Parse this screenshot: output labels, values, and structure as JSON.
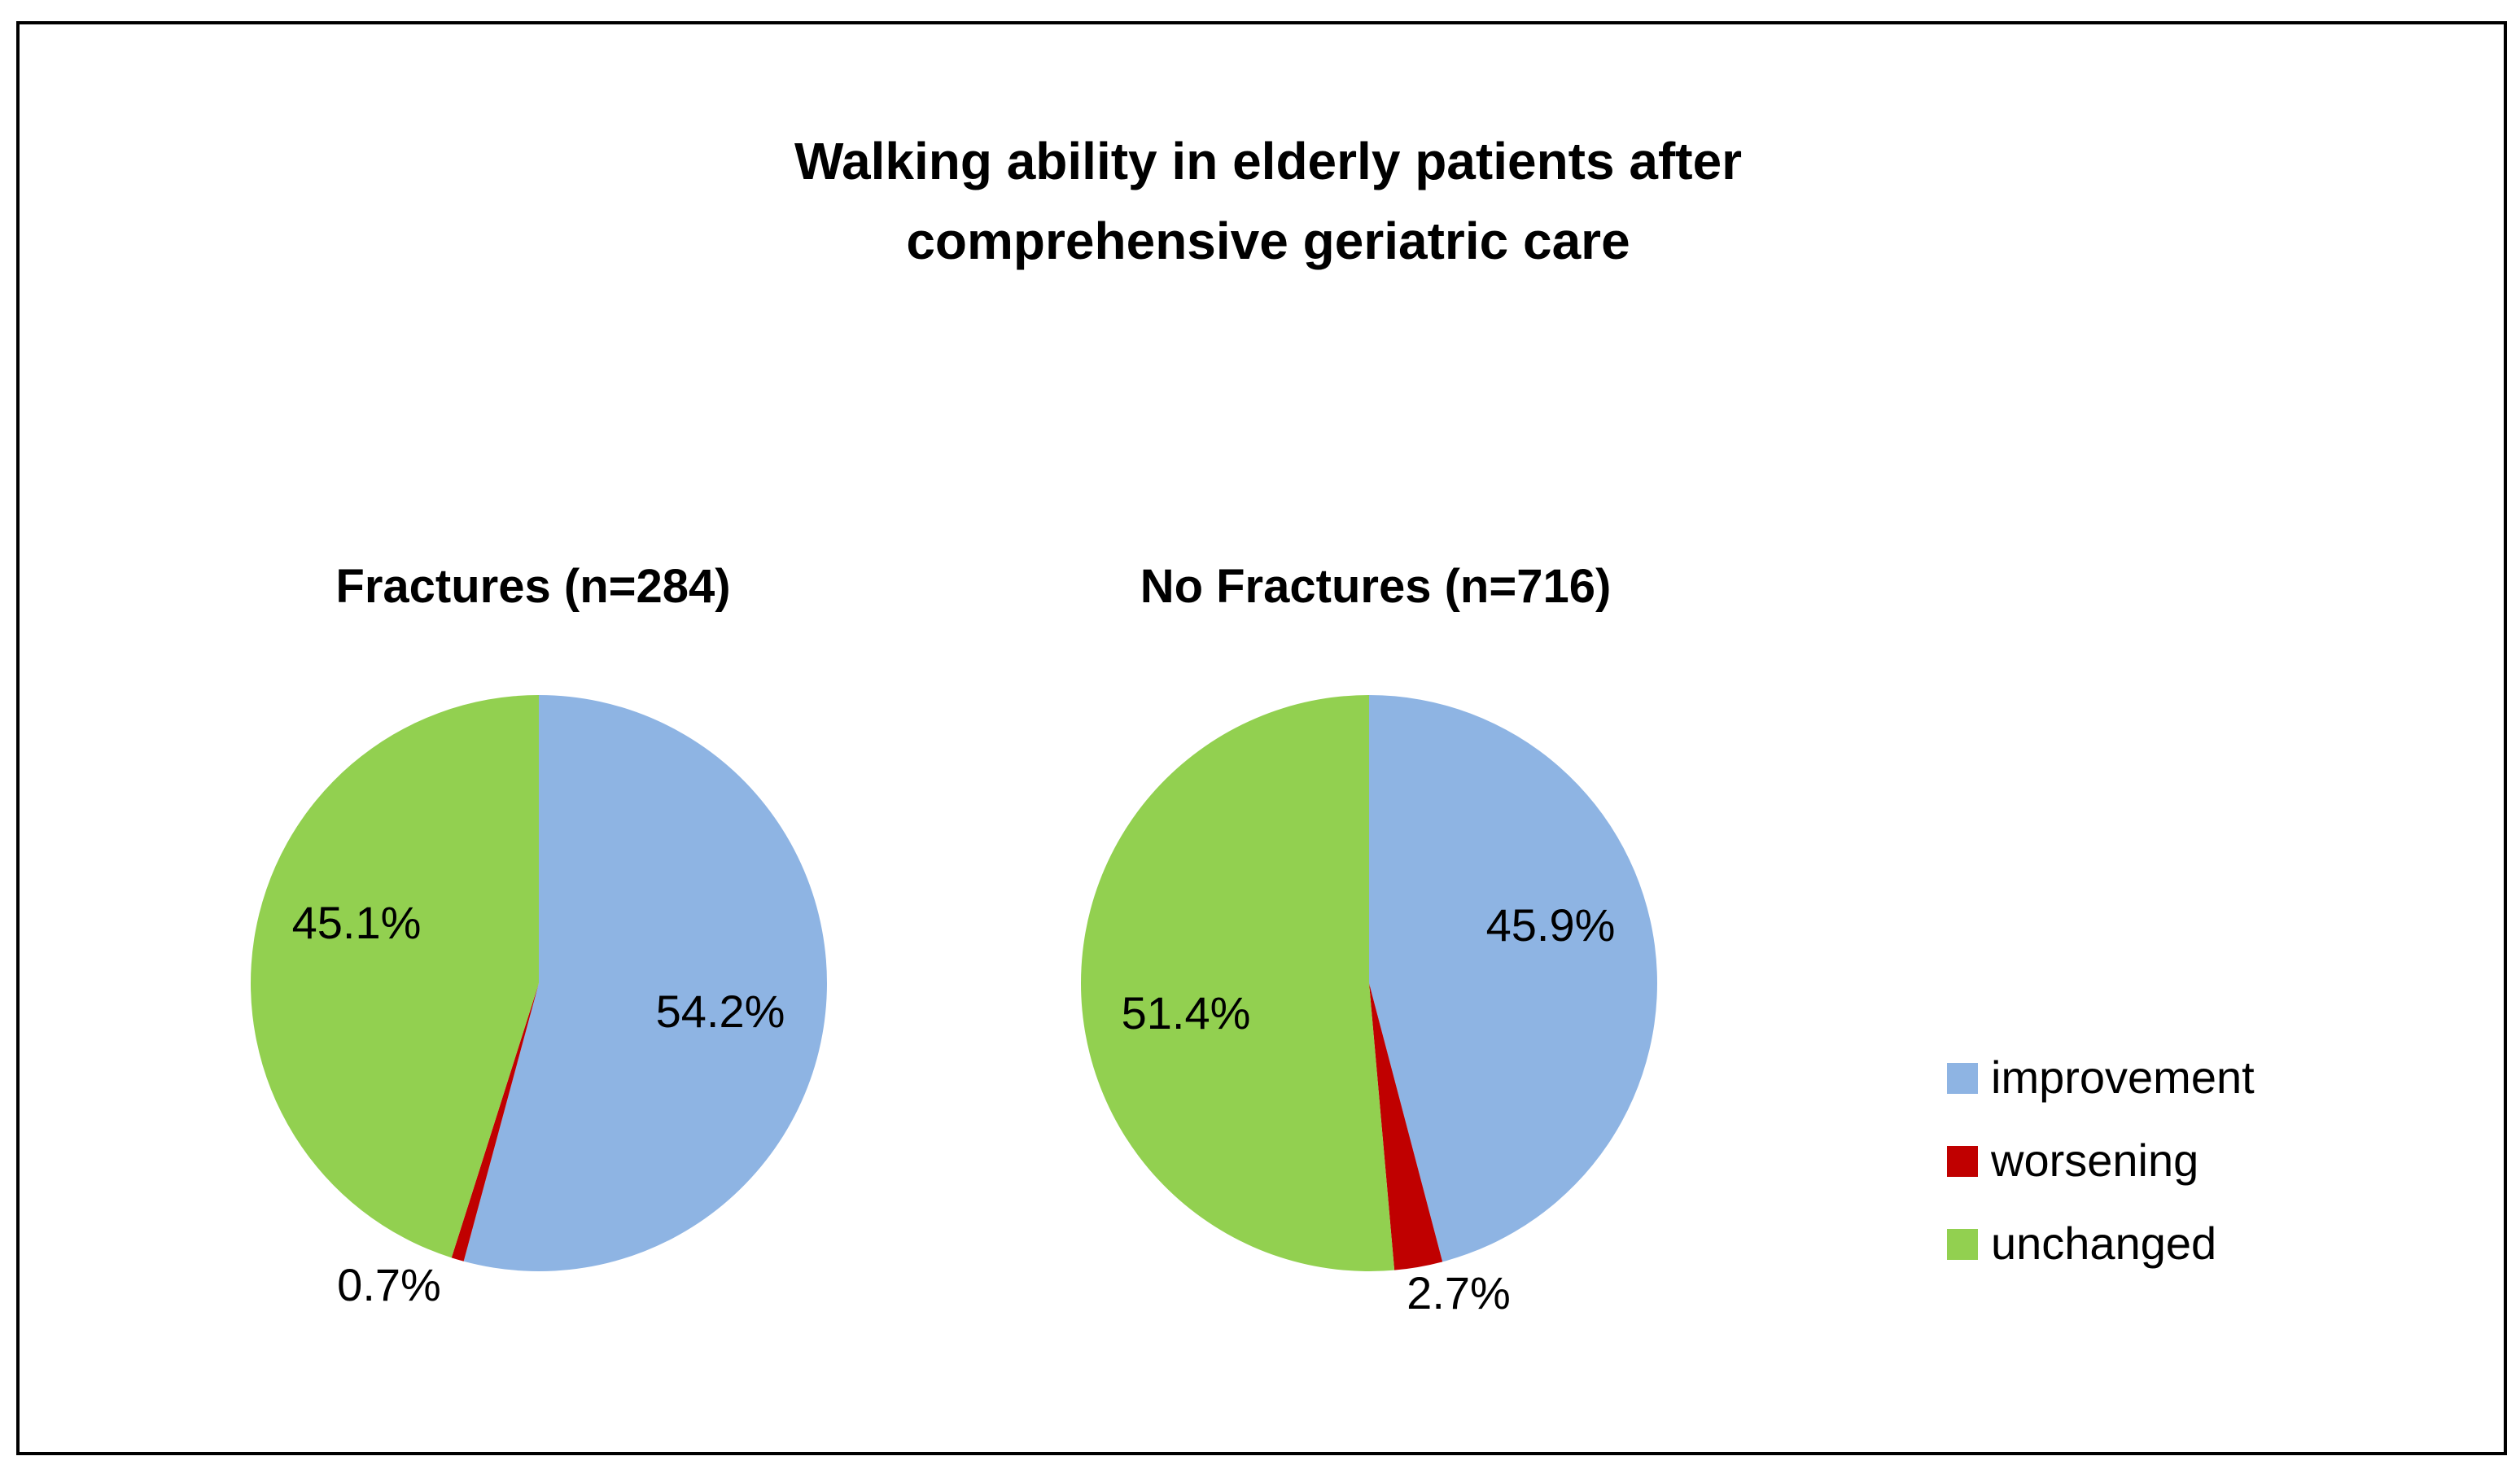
{
  "chart_data": {
    "type": "pie",
    "title_lines": [
      "Walking ability in elderly patients after",
      "comprehensive geriatric care"
    ],
    "legend": {
      "position": "right",
      "entries": [
        {
          "label": "improvement",
          "color": "#8EB4E3"
        },
        {
          "label": "worsening",
          "color": "#C00000"
        },
        {
          "label": "unchanged",
          "color": "#92D050"
        }
      ]
    },
    "pies": [
      {
        "title": "Fractures (n=284)",
        "slices": [
          {
            "category": "improvement",
            "value": 54.2,
            "label": "54.2%"
          },
          {
            "category": "worsening",
            "value": 0.7,
            "label": "0.7%"
          },
          {
            "category": "unchanged",
            "value": 45.1,
            "label": "45.1%"
          }
        ]
      },
      {
        "title": "No Fractures (n=716)",
        "slices": [
          {
            "category": "improvement",
            "value": 45.9,
            "label": "45.9%"
          },
          {
            "category": "worsening",
            "value": 2.7,
            "label": "2.7%"
          },
          {
            "category": "unchanged",
            "value": 51.4,
            "label": "51.4%"
          }
        ]
      }
    ]
  }
}
